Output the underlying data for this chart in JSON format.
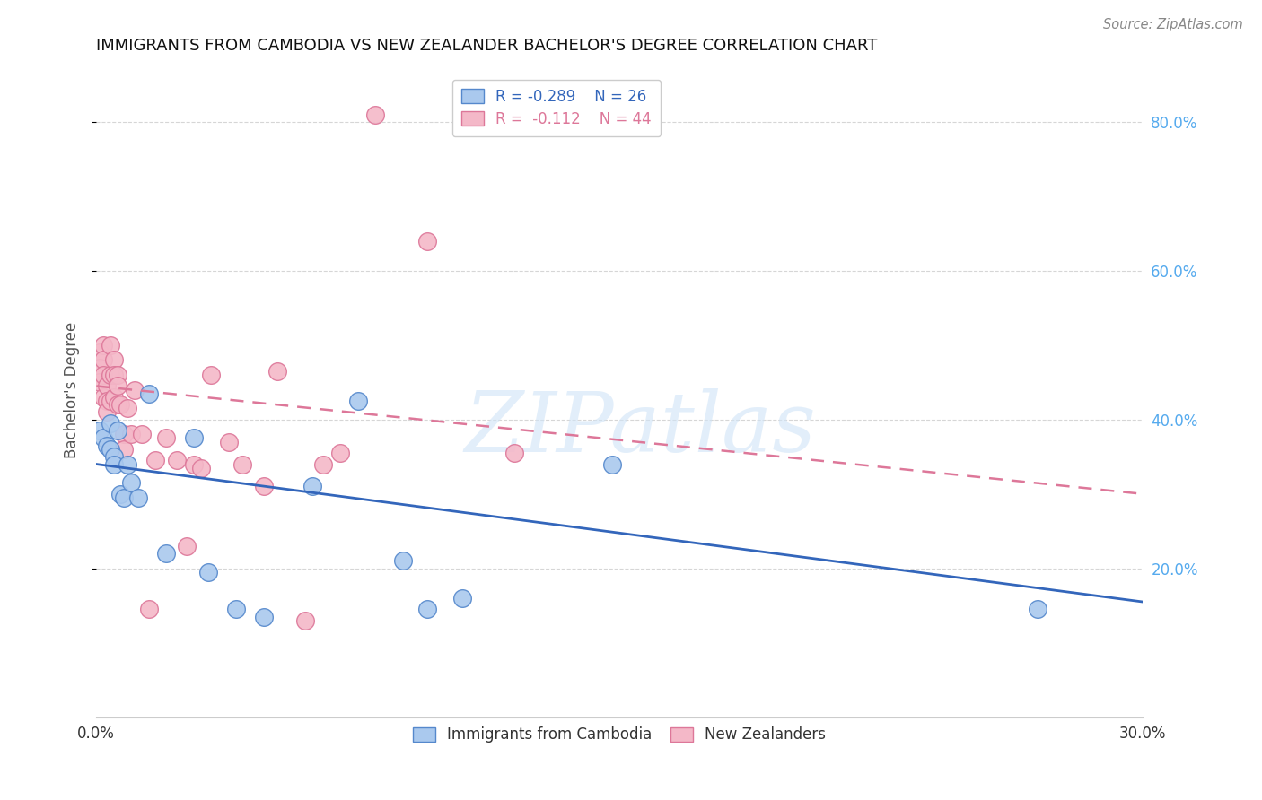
{
  "title": "IMMIGRANTS FROM CAMBODIA VS NEW ZEALANDER BACHELOR'S DEGREE CORRELATION CHART",
  "source": "Source: ZipAtlas.com",
  "ylabel": "Bachelor's Degree",
  "right_yticks": [
    "20.0%",
    "40.0%",
    "60.0%",
    "80.0%"
  ],
  "right_ytick_vals": [
    0.2,
    0.4,
    0.6,
    0.8
  ],
  "xlim": [
    0.0,
    0.3
  ],
  "ylim": [
    0.0,
    0.88
  ],
  "legend_r_blue": "R = -0.289",
  "legend_n_blue": "N = 26",
  "legend_r_pink": "R =  -0.112",
  "legend_n_pink": "N = 44",
  "blue_color": "#aac9ee",
  "pink_color": "#f4b8c8",
  "blue_edge_color": "#5588cc",
  "pink_edge_color": "#dd7799",
  "blue_line_color": "#3366bb",
  "pink_line_color": "#dd7799",
  "watermark_text": "ZIPatlas",
  "blue_scatter_x": [
    0.001,
    0.002,
    0.003,
    0.004,
    0.004,
    0.005,
    0.005,
    0.006,
    0.007,
    0.008,
    0.009,
    0.01,
    0.012,
    0.015,
    0.02,
    0.028,
    0.032,
    0.04,
    0.048,
    0.062,
    0.075,
    0.088,
    0.095,
    0.105,
    0.148,
    0.27
  ],
  "blue_scatter_y": [
    0.385,
    0.375,
    0.365,
    0.395,
    0.36,
    0.35,
    0.34,
    0.385,
    0.3,
    0.295,
    0.34,
    0.315,
    0.295,
    0.435,
    0.22,
    0.375,
    0.195,
    0.145,
    0.135,
    0.31,
    0.425,
    0.21,
    0.145,
    0.16,
    0.34,
    0.145
  ],
  "pink_scatter_x": [
    0.001,
    0.001,
    0.001,
    0.002,
    0.002,
    0.002,
    0.002,
    0.003,
    0.003,
    0.003,
    0.004,
    0.004,
    0.004,
    0.005,
    0.005,
    0.005,
    0.006,
    0.006,
    0.006,
    0.007,
    0.008,
    0.008,
    0.009,
    0.01,
    0.011,
    0.013,
    0.015,
    0.017,
    0.02,
    0.023,
    0.026,
    0.028,
    0.03,
    0.033,
    0.038,
    0.042,
    0.048,
    0.052,
    0.06,
    0.065,
    0.07,
    0.08,
    0.095,
    0.12
  ],
  "pink_scatter_y": [
    0.49,
    0.47,
    0.45,
    0.5,
    0.48,
    0.46,
    0.43,
    0.445,
    0.425,
    0.41,
    0.5,
    0.46,
    0.425,
    0.48,
    0.46,
    0.43,
    0.46,
    0.445,
    0.42,
    0.42,
    0.38,
    0.36,
    0.415,
    0.38,
    0.44,
    0.38,
    0.145,
    0.345,
    0.375,
    0.345,
    0.23,
    0.34,
    0.335,
    0.46,
    0.37,
    0.34,
    0.31,
    0.465,
    0.13,
    0.34,
    0.355,
    0.81,
    0.64,
    0.355
  ],
  "blue_line_x0": 0.0,
  "blue_line_x1": 0.3,
  "blue_line_y0": 0.34,
  "blue_line_y1": 0.155,
  "pink_line_x0": 0.0,
  "pink_line_x1": 0.3,
  "pink_line_y0": 0.445,
  "pink_line_y1": 0.3
}
